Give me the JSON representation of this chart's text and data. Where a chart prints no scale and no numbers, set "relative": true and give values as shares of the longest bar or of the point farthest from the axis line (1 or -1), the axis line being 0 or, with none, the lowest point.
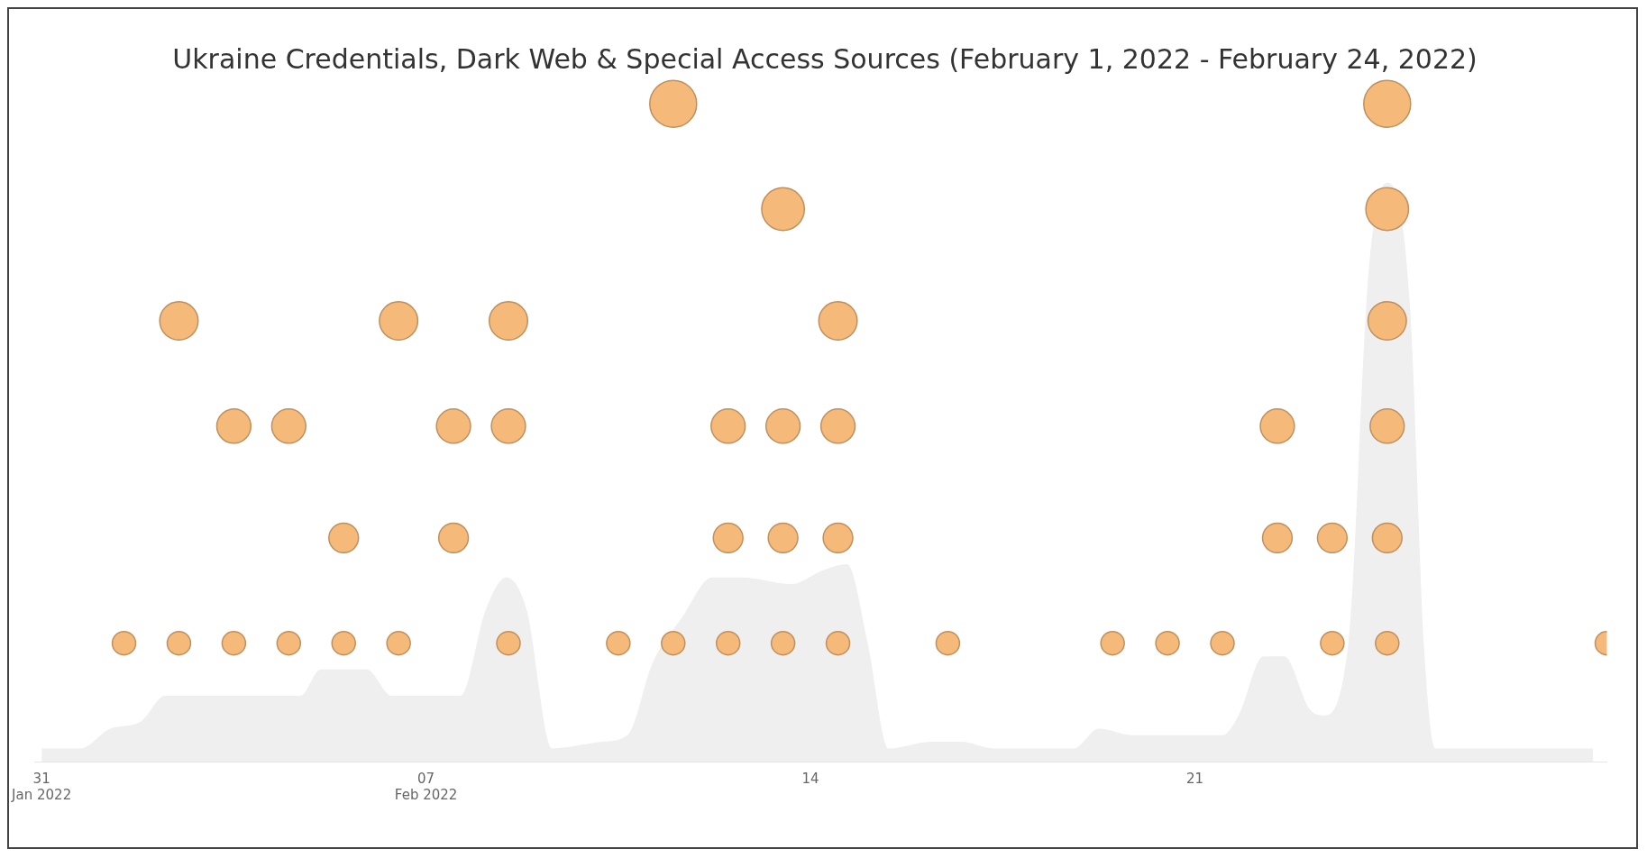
{
  "chart_data": {
    "type": "scatter",
    "title": "Ukraine Credentials, Dark Web & Special Access Sources (February 1, 2022 - February 24, 2022)",
    "relative": true,
    "legend": false,
    "grid": false,
    "xlim": [
      "2022-01-30T21:00",
      "2022-02-28T12:00"
    ],
    "xticks": [
      {
        "value": "2022-01-31",
        "label": "31 Jan 2022"
      },
      {
        "value": "2022-02-07",
        "label": "07 Feb 2022"
      },
      {
        "value": "2022-02-14",
        "label": "14"
      },
      {
        "value": "2022-02-21",
        "label": "21"
      }
    ],
    "series": [
      {
        "type": "area",
        "color": "#efefef",
        "x": [
          "2022-01-31T00:00",
          "2022-01-31T17:00",
          "2022-02-01T06:00",
          "2022-02-01T19:00",
          "2022-02-02T06:00",
          "2022-02-04T17:00",
          "2022-02-05T02:00",
          "2022-02-05T13:00",
          "2022-02-05T22:00",
          "2022-02-06T09:00",
          "2022-02-07T15:00",
          "2022-02-08T02:00",
          "2022-02-08T11:00",
          "2022-02-08T20:00",
          "2022-02-09T07:00",
          "2022-02-10T05:00",
          "2022-02-10T16:00",
          "2022-02-11T03:00",
          "2022-02-11T16:00",
          "2022-02-12T05:00",
          "2022-02-12T18:00",
          "2022-02-13T16:00",
          "2022-02-14T05:00",
          "2022-02-14T16:00",
          "2022-02-15T01:00",
          "2022-02-15T10:00",
          "2022-02-16T05:00",
          "2022-02-16T18:00",
          "2022-02-17T08:00",
          "2022-02-18T19:00",
          "2022-02-19T06:00",
          "2022-02-19T21:00",
          "2022-02-21T12:00",
          "2022-02-21T19:00",
          "2022-02-22T06:00",
          "2022-02-22T15:00",
          "2022-02-23T02:00",
          "2022-02-23T08:00",
          "2022-02-23T19:00",
          "2022-02-24T04:00",
          "2022-02-24T12:00",
          "2022-02-24T22:00",
          "2022-02-25T04:00",
          "2022-02-25T09:00",
          "2022-02-28T06:00"
        ],
        "values": [
          0.02,
          0.02,
          0.05,
          0.06,
          0.1,
          0.1,
          0.14,
          null,
          0.14,
          0.1,
          0.1,
          0.23,
          0.28,
          0.23,
          0.02,
          0.03,
          0.04,
          0.15,
          0.22,
          0.28,
          0.28,
          0.27,
          0.29,
          0.3,
          0.18,
          0.02,
          0.03,
          0.03,
          0.02,
          0.02,
          0.05,
          0.04,
          0.04,
          0.07,
          0.16,
          0.16,
          0.08,
          0.07,
          0.18,
          0.75,
          0.88,
          0.69,
          0.18,
          0.02,
          0.02
        ]
      },
      {
        "type": "scatter",
        "color": "#f5b97a",
        "marker": "circle",
        "sizes": [
          0.25,
          0.25,
          0.67,
          0.25,
          0.53,
          0.25,
          0.53,
          0.25,
          0.4,
          0.25,
          0.67,
          0.4,
          0.53,
          0.25,
          0.53,
          0.67,
          0.25,
          0.25,
          1,
          0.25,
          0.4,
          0.53,
          0.25,
          0.4,
          0.53,
          0.83,
          0.25,
          0.4,
          0.53,
          0.67,
          0.25,
          0.25,
          0.25,
          0.25,
          0.4,
          0.53,
          0.25,
          0.4,
          0.25,
          0.4,
          0.53,
          0.67,
          0.83,
          1,
          0.25
        ],
        "x": [
          "2022-02-01T12:00",
          "2022-02-02T12:00",
          "2022-02-02T12:00",
          "2022-02-03T12:00",
          "2022-02-03T12:00",
          "2022-02-04T12:00",
          "2022-02-04T12:00",
          "2022-02-05T12:00",
          "2022-02-05T12:00",
          "2022-02-06T12:00",
          "2022-02-06T12:00",
          "2022-02-07T12:00",
          "2022-02-07T12:00",
          "2022-02-08T12:00",
          "2022-02-08T12:00",
          "2022-02-08T12:00",
          "2022-02-10T12:00",
          "2022-02-11T12:00",
          "2022-02-11T12:00",
          "2022-02-12T12:00",
          "2022-02-12T12:00",
          "2022-02-12T12:00",
          "2022-02-13T12:00",
          "2022-02-13T12:00",
          "2022-02-13T12:00",
          "2022-02-13T12:00",
          "2022-02-14T12:00",
          "2022-02-14T12:00",
          "2022-02-14T12:00",
          "2022-02-14T12:00",
          "2022-02-16T12:00",
          "2022-02-19T12:00",
          "2022-02-20T12:00",
          "2022-02-21T12:00",
          "2022-02-22T12:00",
          "2022-02-22T12:00",
          "2022-02-23T12:00",
          "2022-02-23T12:00",
          "2022-02-24T12:00",
          "2022-02-24T12:00",
          "2022-02-24T12:00",
          "2022-02-24T12:00",
          "2022-02-24T12:00",
          "2022-02-24T12:00",
          "2022-02-28T12:00"
        ],
        "values": [
          0.18,
          0.18,
          0.67,
          0.18,
          0.51,
          0.18,
          0.51,
          0.18,
          0.34,
          0.18,
          0.67,
          0.34,
          0.51,
          0.18,
          0.51,
          0.67,
          0.18,
          0.18,
          1.0,
          0.18,
          0.34,
          0.51,
          0.18,
          0.34,
          0.51,
          0.84,
          0.18,
          0.34,
          0.51,
          0.67,
          0.18,
          0.18,
          0.18,
          0.18,
          0.34,
          0.51,
          0.18,
          0.34,
          0.18,
          0.34,
          0.51,
          0.67,
          0.84,
          1.0,
          0.18
        ]
      }
    ]
  }
}
